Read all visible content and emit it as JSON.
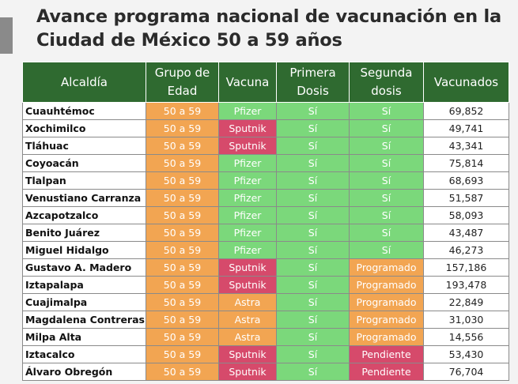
{
  "title_line1": "Avance programa nacional de vacunación en la",
  "title_line2": "Ciudad de México 50 a 59 años",
  "headers": {
    "alcaldia": "Alcaldía",
    "grupo_l1": "Grupo de",
    "grupo_l2": "Edad",
    "vacuna": "Vacuna",
    "primera_l1": "Primera",
    "primera_l2": "Dosis",
    "segunda_l1": "Segunda",
    "segunda_l2": "dosis",
    "vacunados": "Vacunados"
  },
  "colors": {
    "header_green": "#2f6a30",
    "green": "#7bd87b",
    "orange": "#f2a552",
    "red": "#d64a6b"
  },
  "rows": [
    {
      "alcaldia": "Cuauhtémoc",
      "grupo": "50 a 59",
      "vacuna": "Pfizer",
      "primera": "Sí",
      "segunda": "Sí",
      "vacunados": "69,852"
    },
    {
      "alcaldia": "Xochimilco",
      "grupo": "50 a 59",
      "vacuna": "Sputnik",
      "primera": "Sí",
      "segunda": "Sí",
      "vacunados": "49,741"
    },
    {
      "alcaldia": "Tláhuac",
      "grupo": "50 a 59",
      "vacuna": "Sputnik",
      "primera": "Sí",
      "segunda": "Sí",
      "vacunados": "43,341"
    },
    {
      "alcaldia": "Coyoacán",
      "grupo": "50 a 59",
      "vacuna": "Pfizer",
      "primera": "Sí",
      "segunda": "Sí",
      "vacunados": "75,814"
    },
    {
      "alcaldia": "Tlalpan",
      "grupo": "50 a 59",
      "vacuna": "Pfizer",
      "primera": "Sí",
      "segunda": "Sí",
      "vacunados": "68,693"
    },
    {
      "alcaldia": "Venustiano Carranza",
      "grupo": "50 a 59",
      "vacuna": "Pfizer",
      "primera": "Sí",
      "segunda": "Sí",
      "vacunados": "51,587"
    },
    {
      "alcaldia": "Azcapotzalco",
      "grupo": "50 a 59",
      "vacuna": "Pfizer",
      "primera": "Sí",
      "segunda": "Sí",
      "vacunados": "58,093"
    },
    {
      "alcaldia": "Benito Juárez",
      "grupo": "50 a 59",
      "vacuna": "Pfizer",
      "primera": "Sí",
      "segunda": "Sí",
      "vacunados": "43,487"
    },
    {
      "alcaldia": "Miguel Hidalgo",
      "grupo": "50 a 59",
      "vacuna": "Pfizer",
      "primera": "Sí",
      "segunda": "Sí",
      "vacunados": "46,273"
    },
    {
      "alcaldia": "Gustavo A. Madero",
      "grupo": "50 a 59",
      "vacuna": "Sputnik",
      "primera": "Sí",
      "segunda": "Programado",
      "vacunados": "157,186"
    },
    {
      "alcaldia": "Iztapalapa",
      "grupo": "50 a 59",
      "vacuna": "Sputnik",
      "primera": "Sí",
      "segunda": "Programado",
      "vacunados": "193,478"
    },
    {
      "alcaldia": "Cuajimalpa",
      "grupo": "50 a 59",
      "vacuna": "Astra",
      "primera": "Sí",
      "segunda": "Programado",
      "vacunados": "22,849"
    },
    {
      "alcaldia": "Magdalena Contreras",
      "grupo": "50 a 59",
      "vacuna": "Astra",
      "primera": "Sí",
      "segunda": "Programado",
      "vacunados": "31,030"
    },
    {
      "alcaldia": "Milpa Alta",
      "grupo": "50 a 59",
      "vacuna": "Astra",
      "primera": "Sí",
      "segunda": "Programado",
      "vacunados": "14,556"
    },
    {
      "alcaldia": "Iztacalco",
      "grupo": "50 a 59",
      "vacuna": "Sputnik",
      "primera": "Sí",
      "segunda": "Pendiente",
      "vacunados": "53,430"
    },
    {
      "alcaldia": "Álvaro Obregón",
      "grupo": "50 a 59",
      "vacuna": "Sputnik",
      "primera": "Sí",
      "segunda": "Pendiente",
      "vacunados": "76,704"
    }
  ]
}
